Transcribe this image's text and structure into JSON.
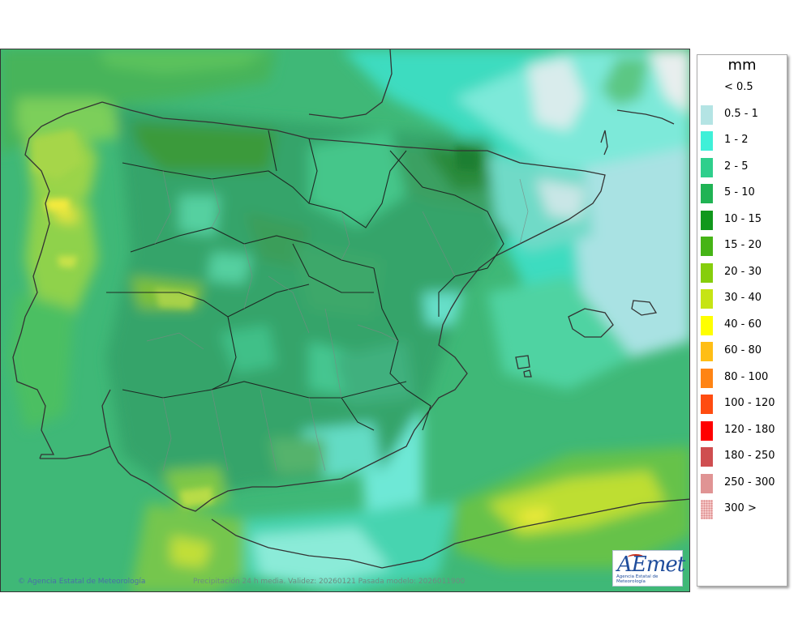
{
  "legend": {
    "title": "mm",
    "items": [
      {
        "label": "< 0.5",
        "color": "#ffffff"
      },
      {
        "label": "0.5 - 1",
        "color": "#b4e4e4"
      },
      {
        "label": "1 - 2",
        "color": "#3ff0d8"
      },
      {
        "label": "2 - 5",
        "color": "#2ecf8c"
      },
      {
        "label": "5 - 10",
        "color": "#20b354"
      },
      {
        "label": "10 - 15",
        "color": "#10981c"
      },
      {
        "label": "15 - 20",
        "color": "#46b416"
      },
      {
        "label": "20 - 30",
        "color": "#86ce0c"
      },
      {
        "label": "30 - 40",
        "color": "#c6e414"
      },
      {
        "label": "40 - 60",
        "color": "#ffff00"
      },
      {
        "label": "60 - 80",
        "color": "#ffbe16"
      },
      {
        "label": "80 - 100",
        "color": "#ff8414"
      },
      {
        "label": "100 - 120",
        "color": "#ff4c10"
      },
      {
        "label": "120 - 180",
        "color": "#ff0000"
      },
      {
        "label": "180 - 250",
        "color": "#cf4e50"
      },
      {
        "label": "250 - 300",
        "color": "#e09494"
      },
      {
        "label": "300 >",
        "color": "#f4c8c8"
      }
    ]
  },
  "credits": {
    "left": "© Agencia Estatal de Meteorología",
    "center": "Precipitación 24 h media. Validez: 20260121 Pasada modelo: 2026011900"
  },
  "logo": {
    "brand": "AEmet",
    "subtitle": "Agencia Estatal de Meteorología"
  }
}
